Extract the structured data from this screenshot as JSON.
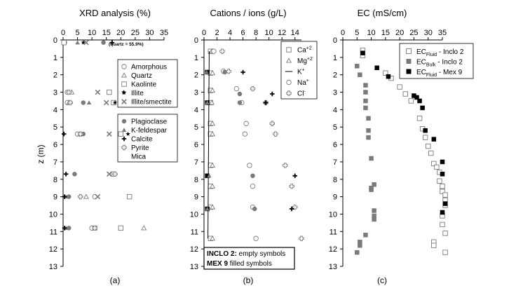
{
  "colors": {
    "ink": "#000000",
    "marker_gray": "#7a7a7a",
    "marker_light": "#9a9a9a",
    "bg": "#ffffff"
  },
  "chart_data": [
    {
      "type": "scatter",
      "title": "XRD analysis (%)",
      "caption": "(a)",
      "ylabel": "z (m)",
      "xlim": [
        0,
        35
      ],
      "ylim": [
        13,
        0
      ],
      "x_ticks": [
        0,
        5,
        10,
        15,
        20,
        25,
        30,
        35
      ],
      "y_ticks": [
        0,
        1,
        2,
        3,
        4,
        5,
        6,
        7,
        8,
        9,
        10,
        11,
        12,
        13
      ],
      "annotation": "(quartz = 55.9%)",
      "legend_groups": [
        [
          "Amorphous",
          "Quartz",
          "Kaolinte",
          "Illite",
          "Illite/smectite"
        ],
        [
          "Plagioclase",
          "K-feldespar",
          "Calcite",
          "Pyrite",
          "Mica"
        ]
      ],
      "series": [
        {
          "name": "Amorphous",
          "marker": "circle-open",
          "points": [
            [
              0.5,
              0.15
            ],
            [
              1.5,
              3.0
            ],
            [
              1.5,
              3.6
            ],
            [
              5,
              5.4
            ],
            [
              11,
              9.0
            ],
            [
              10,
              10.8
            ]
          ]
        },
        {
          "name": "Quartz",
          "marker": "triangle-open",
          "points": [
            [
              3,
              3.0
            ],
            [
              2,
              3.6
            ],
            [
              6,
              5.4
            ],
            [
              8,
              9.0
            ],
            [
              28,
              10.8
            ]
          ]
        },
        {
          "name": "Kaolinte",
          "marker": "square-open",
          "points": [
            [
              0.3,
              0.15
            ],
            [
              16,
              3.0
            ],
            [
              17.5,
              3.6
            ],
            [
              20,
              5.4
            ],
            [
              17.5,
              7.7
            ],
            [
              23,
              9.0
            ],
            [
              20,
              10.8
            ]
          ]
        },
        {
          "name": "Illite",
          "marker": "star-filled",
          "points": [
            [
              7,
              0.15
            ],
            [
              21,
              3.0
            ],
            [
              18,
              3.6
            ],
            [
              22.5,
              5.4
            ]
          ]
        },
        {
          "name": "Illite/smectite",
          "marker": "x",
          "points": [
            [
              8,
              0.15
            ],
            [
              12,
              3.0
            ],
            [
              15,
              3.6
            ],
            [
              16,
              5.4
            ],
            [
              16,
              7.7
            ],
            [
              12,
              9.0
            ],
            [
              11,
              10.8
            ]
          ]
        },
        {
          "name": "Plagioclase",
          "marker": "circle-filled",
          "points": [
            [
              14,
              0.15
            ],
            [
              7,
              3.6
            ],
            [
              7,
              5.4
            ],
            [
              4,
              7.7
            ],
            [
              2,
              9.0
            ],
            [
              2,
              10.8
            ]
          ]
        },
        {
          "name": "K-feldespar",
          "marker": "triangle-filled",
          "points": [
            [
              5,
              0.15
            ],
            [
              9,
              3.6
            ],
            [
              1,
              9.0
            ],
            [
              1,
              10.8
            ]
          ]
        },
        {
          "name": "Calcite",
          "marker": "plus-filled",
          "points": [
            [
              17,
              0.15
            ],
            [
              0.3,
              5.4
            ],
            [
              1,
              7.7
            ],
            [
              0.5,
              9.0
            ],
            [
              0.5,
              10.8
            ]
          ]
        },
        {
          "name": "Pyrite",
          "marker": "plus-open",
          "points": [
            [
              2,
              3.0
            ],
            [
              2.5,
              3.6
            ],
            [
              6,
              5.4
            ],
            [
              18,
              7.7
            ],
            [
              6,
              9.0
            ],
            [
              11,
              10.8
            ]
          ]
        },
        {
          "name": "Mica",
          "marker": "none",
          "points": []
        }
      ]
    },
    {
      "type": "scatter",
      "title": "Cations / ions (g/L)",
      "caption": "(b)",
      "xlim": [
        0,
        15
      ],
      "ylim": [
        13,
        0
      ],
      "x_ticks": [
        0,
        2,
        4,
        6,
        8,
        10,
        12,
        14
      ],
      "y_ticks": [
        0,
        1,
        2,
        3,
        4,
        5,
        6,
        7,
        8,
        9,
        10,
        11,
        12,
        13
      ],
      "legend": [
        "Ca+2",
        "Mg+2",
        "K+",
        "Na+",
        "Cl-"
      ],
      "note_lines": [
        [
          "INCLO 2:",
          " empty symbols"
        ],
        [
          "MEX 9",
          "  filled symbols"
        ]
      ],
      "series": [
        {
          "name": "Ca+2 (INCLO 2)",
          "marker": "square-open",
          "points": [
            [
              1,
              0.65
            ],
            [
              1.0,
              1.9
            ],
            [
              1.0,
              2.9
            ],
            [
              1.0,
              3.6
            ],
            [
              1.0,
              4.8
            ],
            [
              1.0,
              5.4
            ],
            [
              1.0,
              7.2
            ],
            [
              1.0,
              8.4
            ],
            [
              1.0,
              9.6
            ],
            [
              1.0,
              11.4
            ]
          ]
        },
        {
          "name": "Mg+2 (INCLO 2)",
          "marker": "triangle-open",
          "points": [
            [
              1.2,
              0.65
            ],
            [
              1.3,
              1.9
            ],
            [
              1.3,
              2.9
            ],
            [
              1.2,
              3.6
            ],
            [
              1.3,
              4.8
            ],
            [
              1.3,
              5.4
            ],
            [
              1.3,
              7.2
            ],
            [
              1.3,
              8.4
            ],
            [
              1.3,
              9.6
            ],
            [
              1.3,
              11.4
            ]
          ]
        },
        {
          "name": "K+",
          "marker": "line",
          "points": [
            [
              0.8,
              0.65
            ],
            [
              0.6,
              11.4
            ]
          ]
        },
        {
          "name": "Na+ (INCLO 2)",
          "marker": "circle-open",
          "points": [
            [
              1.5,
              0.65
            ],
            [
              3.0,
              1.8
            ],
            [
              5.0,
              2.8
            ],
            [
              5.8,
              3.6
            ],
            [
              6.5,
              4.8
            ],
            [
              6.3,
              5.4
            ],
            [
              7.0,
              7.2
            ],
            [
              7.5,
              8.4
            ],
            [
              7.5,
              9.6
            ],
            [
              8.0,
              11.4
            ]
          ]
        },
        {
          "name": "Cl- (INCLO 2)",
          "marker": "plus-open",
          "points": [
            [
              2.8,
              0.65
            ],
            [
              3.8,
              1.8
            ],
            [
              7.5,
              2.8
            ],
            [
              9.5,
              3.6
            ],
            [
              10.5,
              4.8
            ],
            [
              11.0,
              5.4
            ],
            [
              12.5,
              7.2
            ],
            [
              13.5,
              8.4
            ],
            [
              14.0,
              9.6
            ],
            [
              15.0,
              11.4
            ]
          ]
        },
        {
          "name": "Ca+2 (MEX 9)",
          "marker": "square-filled",
          "points": [
            [
              0.5,
              1.85
            ],
            [
              0.5,
              3.6
            ],
            [
              0.5,
              7.8
            ],
            [
              0.5,
              9.7
            ]
          ]
        },
        {
          "name": "Mg+2 (MEX 9)",
          "marker": "triangle-filled",
          "points": [
            [
              0.4,
              1.85
            ],
            [
              0.5,
              3.6
            ],
            [
              0.8,
              7.8
            ],
            [
              0.5,
              9.7
            ]
          ]
        },
        {
          "name": "Na+ (MEX 9)",
          "marker": "circle-filled",
          "points": [
            [
              3.2,
              1.85
            ],
            [
              5.5,
              3.1
            ],
            [
              5.5,
              3.6
            ],
            [
              7.5,
              7.8
            ],
            [
              7.8,
              9.7
            ]
          ]
        },
        {
          "name": "Cl- (MEX 9)",
          "marker": "plus-filled",
          "points": [
            [
              6.0,
              1.85
            ],
            [
              10.5,
              3.1
            ],
            [
              9.5,
              3.6
            ],
            [
              14.0,
              7.8
            ],
            [
              13.5,
              9.7
            ]
          ]
        }
      ]
    },
    {
      "type": "scatter",
      "title": "EC (mS/cm)",
      "caption": "(c)",
      "xlim": [
        0,
        35
      ],
      "ylim": [
        13,
        0
      ],
      "x_ticks": [
        0,
        5,
        10,
        15,
        20,
        25,
        30,
        35
      ],
      "y_ticks": [
        0,
        1,
        2,
        3,
        4,
        5,
        6,
        7,
        8,
        9,
        10,
        11,
        12,
        13
      ],
      "legend": [
        {
          "base": "EC",
          "sub": "Fluid",
          "suffix": " - Inclo 2",
          "marker": "square-open"
        },
        {
          "base": "EC",
          "sub": "Bulk",
          "suffix": " - Inclo 2",
          "marker": "square-gray"
        },
        {
          "base": "EC",
          "sub": "Fluid",
          "suffix": " - Mex 9",
          "marker": "square-filled"
        }
      ],
      "series": [
        {
          "name": "EC Fluid - Inclo 2",
          "marker": "square-open",
          "points": [
            [
              7,
              0.6
            ],
            [
              7,
              0.9
            ],
            [
              15,
              1.9
            ],
            [
              17,
              2.2
            ],
            [
              20,
              2.7
            ],
            [
              22,
              3.1
            ],
            [
              24,
              3.5
            ],
            [
              27,
              4.5
            ],
            [
              28,
              5.1
            ],
            [
              29,
              5.6
            ],
            [
              30,
              6.1
            ],
            [
              31,
              6.5
            ],
            [
              32,
              7.1
            ],
            [
              33,
              7.3
            ],
            [
              34,
              7.6
            ],
            [
              34,
              8.1
            ],
            [
              35,
              8.4
            ],
            [
              35,
              8.7
            ],
            [
              36,
              8.9
            ],
            [
              36,
              9.2
            ],
            [
              36,
              9.5
            ],
            [
              35,
              10.1
            ],
            [
              35,
              10.6
            ],
            [
              36,
              11.1
            ],
            [
              32,
              11.6
            ],
            [
              32,
              11.8
            ],
            [
              36,
              12.2
            ]
          ]
        },
        {
          "name": "EC Bulk - Inclo 2",
          "marker": "square-gray",
          "points": [
            [
              5,
              1.5
            ],
            [
              6,
              2.0
            ],
            [
              8,
              2.6
            ],
            [
              8,
              3.0
            ],
            [
              8,
              3.5
            ],
            [
              8,
              3.9
            ],
            [
              9,
              4.5
            ],
            [
              9,
              5.2
            ],
            [
              9,
              5.6
            ],
            [
              10,
              6.8
            ],
            [
              10,
              8.5
            ],
            [
              10,
              8.6
            ],
            [
              11,
              8.3
            ],
            [
              11,
              9.8
            ],
            [
              11,
              10.1
            ],
            [
              11,
              10.3
            ],
            [
              8,
              11.2
            ],
            [
              6,
              11.6
            ],
            [
              6,
              11.8
            ],
            [
              5,
              12.2
            ]
          ]
        },
        {
          "name": "EC Fluid - Mex 9",
          "marker": "square-filled",
          "points": [
            [
              7,
              0.75
            ],
            [
              12,
              1.6
            ],
            [
              16,
              2.1
            ],
            [
              25,
              3.2
            ],
            [
              26,
              3.3
            ],
            [
              27,
              3.5
            ],
            [
              28,
              3.9
            ],
            [
              29,
              5.2
            ],
            [
              32,
              5.7
            ],
            [
              35,
              7.0
            ],
            [
              35,
              7.7
            ],
            [
              36,
              9.4
            ],
            [
              35,
              9.9
            ]
          ]
        }
      ]
    }
  ]
}
